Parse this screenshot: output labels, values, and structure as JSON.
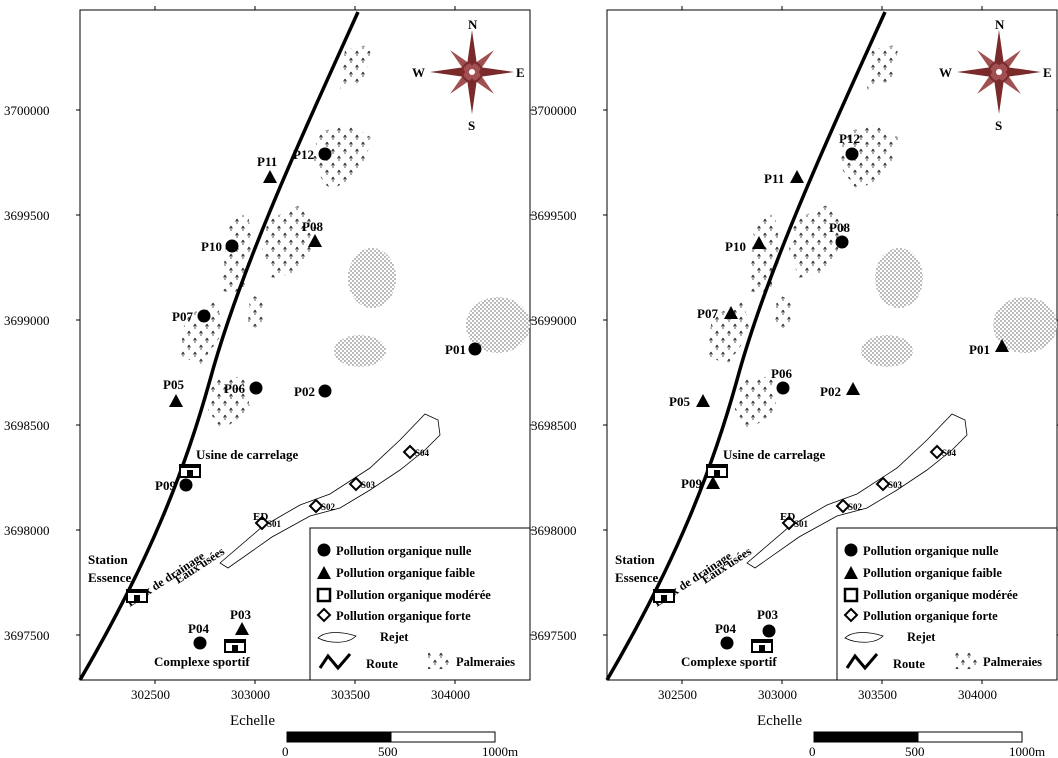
{
  "x_ticks": [
    "302500",
    "303000",
    "303500",
    "304000"
  ],
  "y_ticks": [
    "3700000",
    "3699500",
    "3699000",
    "3698500",
    "3698000",
    "3697500"
  ],
  "compass": {
    "n": "N",
    "s": "S",
    "e": "E",
    "w": "W"
  },
  "place_labels": {
    "usine": "Usine de carrelage",
    "station_line1": "Station",
    "station_line2": "Essence",
    "complexe": "Complexe sportif",
    "eaux_usees": "Eaux usées",
    "eaux_drainage": "Eaux de drainage",
    "ed": "ED"
  },
  "legend": {
    "nulle": "Pollution organique nulle",
    "faible": "Pollution organique faible",
    "moderee": "Pollution organique modérée",
    "forte": "Pollution organique forte",
    "rejet": "Rejet",
    "route": "Route",
    "palmeraies": "Palmeraies"
  },
  "scale": {
    "title": "Echelle",
    "labels": [
      "0",
      "500",
      "1000m"
    ]
  },
  "s_labels": [
    "S01",
    "S02",
    "S03",
    "S04"
  ],
  "maps": [
    {
      "wells": [
        {
          "name": "P01",
          "status": "nulle"
        },
        {
          "name": "P02",
          "status": "nulle"
        },
        {
          "name": "P03",
          "status": "faible"
        },
        {
          "name": "P04",
          "status": "nulle"
        },
        {
          "name": "P05",
          "status": "faible"
        },
        {
          "name": "P06",
          "status": "nulle"
        },
        {
          "name": "P07",
          "status": "nulle"
        },
        {
          "name": "P08",
          "status": "faible"
        },
        {
          "name": "P09",
          "status": "nulle"
        },
        {
          "name": "P10",
          "status": "nulle"
        },
        {
          "name": "P11",
          "status": "faible"
        },
        {
          "name": "P12",
          "status": "nulle"
        }
      ]
    },
    {
      "wells": [
        {
          "name": "P01",
          "status": "faible"
        },
        {
          "name": "P02",
          "status": "faible"
        },
        {
          "name": "P03",
          "status": "nulle"
        },
        {
          "name": "P04",
          "status": "nulle"
        },
        {
          "name": "P05",
          "status": "faible"
        },
        {
          "name": "P06",
          "status": "nulle"
        },
        {
          "name": "P07",
          "status": "faible"
        },
        {
          "name": "P08",
          "status": "nulle"
        },
        {
          "name": "P09",
          "status": "faible"
        },
        {
          "name": "P10",
          "status": "faible"
        },
        {
          "name": "P11",
          "status": "faible"
        },
        {
          "name": "P12",
          "status": "nulle"
        }
      ]
    }
  ]
}
